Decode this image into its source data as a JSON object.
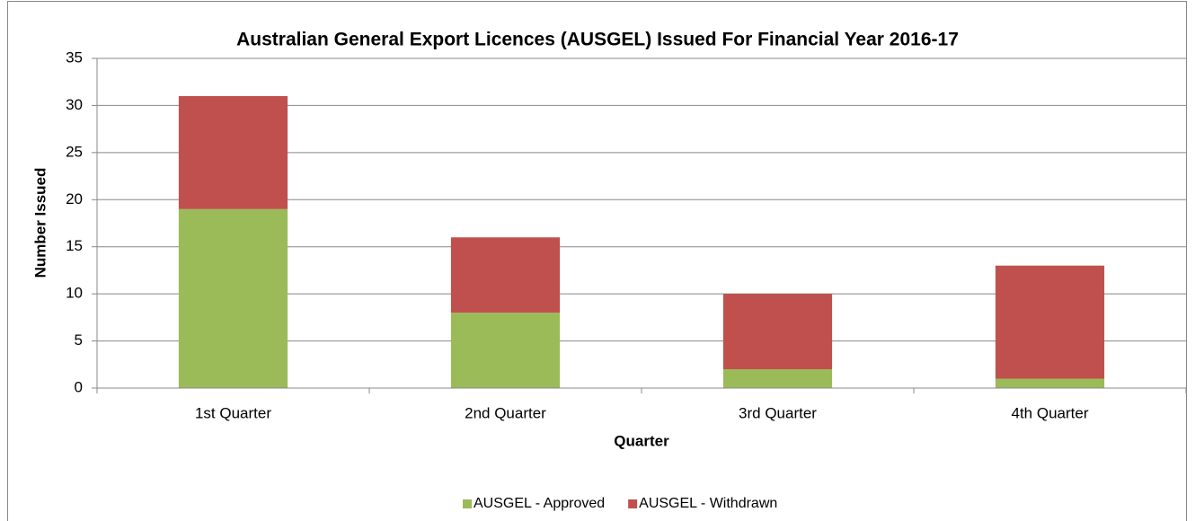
{
  "chart_data": {
    "type": "bar",
    "stacked": true,
    "title": "Australian General Export Licences (AUSGEL) Issued For Financial Year 2016-17",
    "x_label": "Quarter",
    "y_label": "Number Issued",
    "categories": [
      "1st Quarter",
      "2nd Quarter",
      "3rd Quarter",
      "4th Quarter"
    ],
    "series": [
      {
        "name": "AUSGEL - Approved",
        "color": "#9bbb59",
        "values": [
          19,
          8,
          2,
          1
        ]
      },
      {
        "name": "AUSGEL - Withdrawn",
        "color": "#c0504d",
        "values": [
          12,
          8,
          8,
          12
        ]
      }
    ],
    "ylim": [
      0,
      35
    ],
    "yticks": [
      0,
      5,
      10,
      15,
      20,
      25,
      30,
      35
    ],
    "grid": true,
    "legend": "bottom"
  }
}
